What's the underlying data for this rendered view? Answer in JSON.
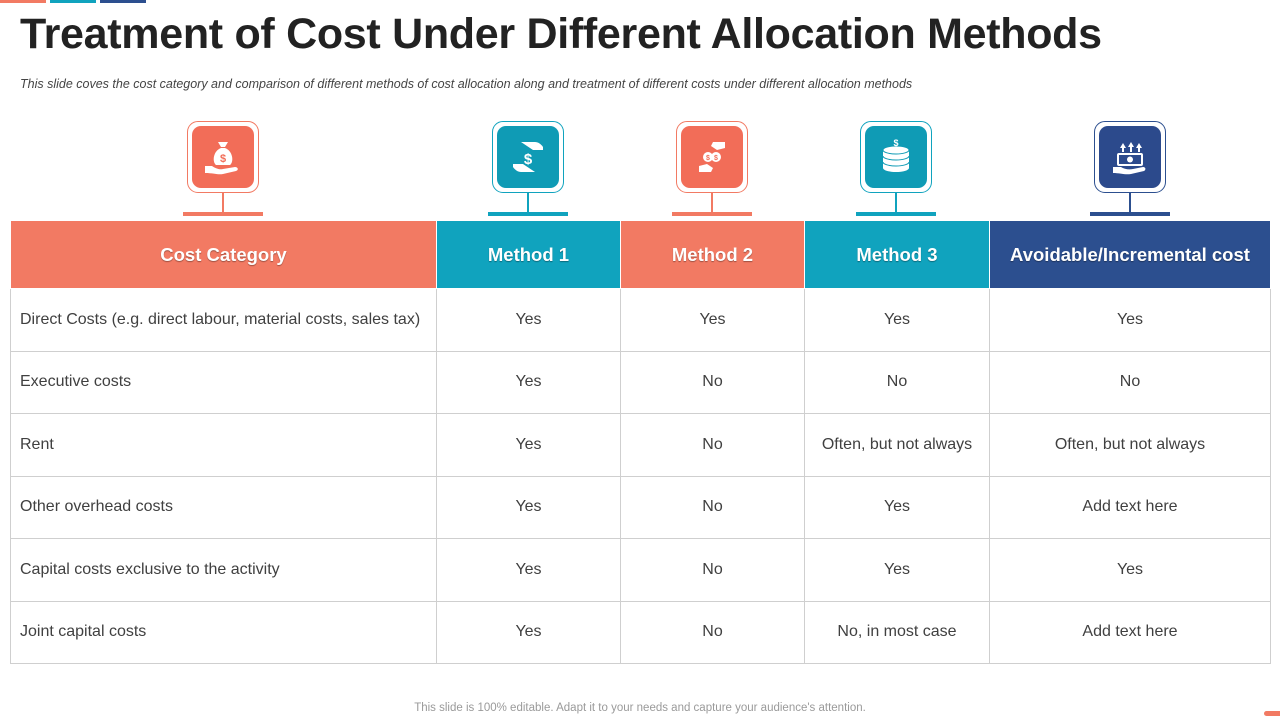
{
  "colors": {
    "coral": "#F27A63",
    "teal": "#10A3BE",
    "navy": "#2C4F8F",
    "icon_coral": "#F26D58",
    "icon_teal": "#0F9BB5",
    "icon_navy": "#2C4A8C"
  },
  "title": "Treatment of Cost Under Different Allocation Methods",
  "subtitle": "This slide coves the cost category and comparison of different methods of cost allocation along and treatment of different costs under different allocation methods",
  "icons": [
    "money-bag-hand-icon",
    "dollar-hand-exchange-icon",
    "coin-exchange-hands-icon",
    "coin-stack-icon",
    "cash-hand-growth-icon"
  ],
  "table": {
    "headers": [
      "Cost Category",
      "Method 1",
      "Method 2",
      "Method 3",
      "Avoidable/Incremental cost"
    ],
    "rows": [
      [
        "Direct Costs (e.g. direct labour, material costs, sales tax)",
        "Yes",
        "Yes",
        "Yes",
        "Yes"
      ],
      [
        "Executive costs",
        "Yes",
        "No",
        "No",
        "No"
      ],
      [
        "Rent",
        "Yes",
        "No",
        "Often, but not always",
        "Often, but not always"
      ],
      [
        "Other overhead costs",
        "Yes",
        "No",
        "Yes",
        "Add text here"
      ],
      [
        "Capital costs exclusive to the activity",
        "Yes",
        "No",
        "Yes",
        "Yes"
      ],
      [
        "Joint capital costs",
        "Yes",
        "No",
        "No, in most case",
        "Add text here"
      ]
    ]
  },
  "footer": "This slide is 100% editable. Adapt it to your needs and capture your audience's attention."
}
